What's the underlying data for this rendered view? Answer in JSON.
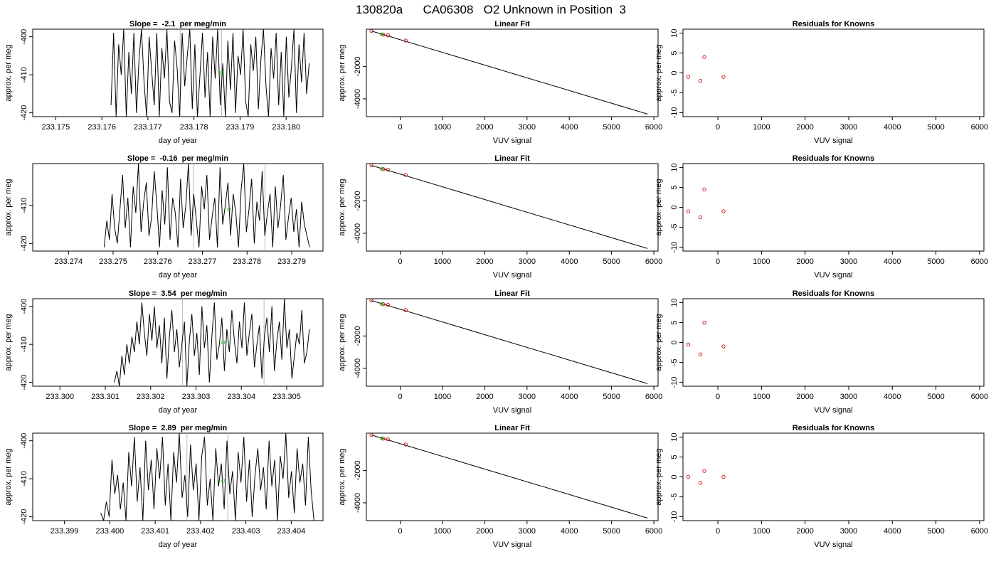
{
  "page_title": "130820a      CA06308   O2 Unknown in Position  3",
  "chart_data": [
    {
      "type": "line",
      "title": "Slope =  -2.1  per meg/min",
      "xlabel": "day of year",
      "ylabel": "approx. per meg",
      "xlim": [
        233.1745,
        233.1808
      ],
      "ylim": [
        -421,
        -398
      ],
      "xticks": [
        "233.175",
        "233.176",
        "233.177",
        "233.178",
        "233.179",
        "233.180"
      ],
      "yticks": [
        "-400",
        "-410",
        "-420"
      ],
      "x_start": 233.1762,
      "x_end": 233.1805,
      "series": [
        {
          "values": [
            -418,
            -399,
            -421,
            -402,
            -410,
            -398,
            -421,
            -404,
            -415,
            -399,
            -420,
            -406,
            -398,
            -412,
            -421,
            -400,
            -409,
            -418,
            -399,
            -421,
            -403,
            -411,
            -398,
            -417,
            -420,
            -401,
            -408,
            -421,
            -399,
            -413,
            -405,
            -398,
            -419,
            -402,
            -421,
            -410,
            -399,
            -416,
            -404,
            -421,
            -400,
            -411,
            -398,
            -418,
            -407,
            -421,
            -401,
            -414,
            -399,
            -420,
            -405,
            -410,
            -398,
            -417,
            -421,
            -402,
            -409,
            -400,
            -419,
            -406,
            -398,
            -413,
            -421,
            -403,
            -411,
            -399,
            -418,
            -404,
            -421,
            -400,
            -416,
            -408,
            -398,
            -420,
            -402,
            -412,
            -399,
            -415,
            -407
          ]
        }
      ],
      "vlines": [
        233.1777,
        233.1786
      ],
      "green_point": [
        233.1786,
        -409.5
      ]
    },
    {
      "type": "line",
      "title": "Linear Fit",
      "xlabel": "VUV signal",
      "ylabel": "approx. per meg",
      "xlim": [
        -800,
        6100
      ],
      "ylim": [
        -5100,
        300
      ],
      "xticks": [
        "0",
        "1000",
        "2000",
        "3000",
        "4000",
        "5000",
        "6000"
      ],
      "yticks": [
        "-2000",
        "-4000"
      ],
      "line": {
        "x": [
          -680,
          5850
        ],
        "y": [
          185,
          -4940
        ]
      },
      "knowns": {
        "x": [
          -680,
          -400,
          -290,
          130
        ],
        "y": [
          185,
          -40,
          -75,
          -400
        ]
      },
      "unknown": {
        "x": [
          -440
        ],
        "y": [
          -20
        ]
      }
    },
    {
      "type": "scatter",
      "title": "Residuals for Knowns",
      "xlabel": "VUV signal",
      "ylabel": "approx. per meg",
      "xlim": [
        -800,
        6100
      ],
      "ylim": [
        -11,
        11
      ],
      "xticks": [
        "0",
        "1000",
        "2000",
        "3000",
        "4000",
        "5000",
        "6000"
      ],
      "yticks": [
        "10",
        "5",
        "0",
        "-5",
        "-10"
      ],
      "x": [
        -680,
        -400,
        -310,
        130
      ],
      "y": [
        -1,
        -2,
        4,
        -1
      ]
    },
    {
      "type": "line",
      "title": "Slope =  -0.16  per meg/min",
      "xlabel": "day of year",
      "ylabel": "approx. per meg",
      "xlim": [
        233.2732,
        233.2797
      ],
      "ylim": [
        -422,
        -399
      ],
      "xticks": [
        "233.274",
        "233.275",
        "233.276",
        "233.277",
        "233.278",
        "233.279"
      ],
      "yticks": [
        "-410",
        "-420"
      ],
      "x_start": 233.2748,
      "x_end": 233.2794,
      "series": [
        {
          "values": [
            -421,
            -414,
            -419,
            -407,
            -416,
            -420,
            -411,
            -402,
            -416,
            -408,
            -421,
            -405,
            -412,
            -399,
            -417,
            -409,
            -404,
            -418,
            -413,
            -401,
            -410,
            -421,
            -406,
            -415,
            -400,
            -419,
            -408,
            -412,
            -421,
            -403,
            -416,
            -410,
            -399,
            -418,
            -407,
            -414,
            -421,
            -405,
            -411,
            -402,
            -419,
            -413,
            -408,
            -421,
            -400,
            -415,
            -410,
            -404,
            -418,
            -407,
            -412,
            -421,
            -406,
            -399,
            -417,
            -411,
            -403,
            -420,
            -409,
            -414,
            -401,
            -418,
            -412,
            -407,
            -421,
            -405,
            -416,
            -410,
            -402,
            -419,
            -413,
            -408,
            -417,
            -411,
            -421,
            -409,
            -415,
            -418,
            -421
          ]
        }
      ],
      "vlines": [
        233.2768,
        233.2784
      ],
      "green_point": [
        233.2776,
        -411
      ]
    },
    {
      "type": "line",
      "title": "Linear Fit",
      "xlabel": "VUV signal",
      "ylabel": "approx. per meg",
      "xlim": [
        -800,
        6100
      ],
      "ylim": [
        -5100,
        300
      ],
      "xticks": [
        "0",
        "1000",
        "2000",
        "3000",
        "4000",
        "5000",
        "6000"
      ],
      "yticks": [
        "-2000",
        "-4000"
      ],
      "line": {
        "x": [
          -680,
          5850
        ],
        "y": [
          185,
          -4940
        ]
      },
      "knowns": {
        "x": [
          -680,
          -400,
          -290,
          130
        ],
        "y": [
          185,
          -40,
          -75,
          -400
        ]
      },
      "unknown": {
        "x": [
          -440
        ],
        "y": [
          -20
        ]
      }
    },
    {
      "type": "scatter",
      "title": "Residuals for Knowns",
      "xlabel": "VUV signal",
      "ylabel": "approx. per meg",
      "xlim": [
        -800,
        6100
      ],
      "ylim": [
        -11,
        11
      ],
      "xticks": [
        "0",
        "1000",
        "2000",
        "3000",
        "4000",
        "5000",
        "6000"
      ],
      "yticks": [
        "10",
        "5",
        "0",
        "-5",
        "-10"
      ],
      "x": [
        -680,
        -400,
        -310,
        130
      ],
      "y": [
        -1,
        -2.5,
        4.5,
        -1
      ]
    },
    {
      "type": "line",
      "title": "Slope =  3.54  per meg/min",
      "xlabel": "day of year",
      "ylabel": "approx. per meg",
      "xlim": [
        233.2994,
        233.3058
      ],
      "ylim": [
        -421,
        -398
      ],
      "xticks": [
        "233.300",
        "233.301",
        "233.302",
        "233.303",
        "233.304",
        "233.305"
      ],
      "yticks": [
        "-400",
        "-410",
        "-420"
      ],
      "x_start": 233.3012,
      "x_end": 233.3055,
      "series": [
        {
          "values": [
            -420,
            -417,
            -421,
            -413,
            -418,
            -410,
            -415,
            -408,
            -412,
            -404,
            -410,
            -399,
            -407,
            -413,
            -402,
            -409,
            -400,
            -411,
            -405,
            -415,
            -403,
            -419,
            -408,
            -401,
            -412,
            -406,
            -416,
            -410,
            -404,
            -421,
            -409,
            -402,
            -413,
            -407,
            -418,
            -400,
            -411,
            -405,
            -420,
            -408,
            -399,
            -414,
            -410,
            -403,
            -417,
            -406,
            -412,
            -401,
            -409,
            -415,
            -404,
            -411,
            -399,
            -413,
            -407,
            -402,
            -416,
            -410,
            -405,
            -419,
            -408,
            -403,
            -412,
            -400,
            -417,
            -409,
            -404,
            -414,
            -398,
            -411,
            -406,
            -419,
            -413,
            -407,
            -410,
            -401,
            -415,
            -412,
            -406
          ]
        }
      ],
      "vlines": [
        233.3027,
        233.3045
      ],
      "green_point": [
        233.3036,
        -409.5
      ]
    },
    {
      "type": "line",
      "title": "Linear Fit",
      "xlabel": "VUV signal",
      "ylabel": "approx. per meg",
      "xlim": [
        -800,
        6100
      ],
      "ylim": [
        -5100,
        300
      ],
      "xticks": [
        "0",
        "1000",
        "2000",
        "3000",
        "4000",
        "5000",
        "6000"
      ],
      "yticks": [
        "-2000",
        "-4000"
      ],
      "line": {
        "x": [
          -680,
          5850
        ],
        "y": [
          185,
          -4940
        ]
      },
      "knowns": {
        "x": [
          -680,
          -400,
          -290,
          130
        ],
        "y": [
          185,
          -40,
          -75,
          -400
        ]
      },
      "unknown": {
        "x": [
          -440
        ],
        "y": [
          -20
        ]
      }
    },
    {
      "type": "scatter",
      "title": "Residuals for Knowns",
      "xlabel": "VUV signal",
      "ylabel": "approx. per meg",
      "xlim": [
        -800,
        6100
      ],
      "ylim": [
        -11,
        11
      ],
      "xticks": [
        "0",
        "1000",
        "2000",
        "3000",
        "4000",
        "5000",
        "6000"
      ],
      "yticks": [
        "10",
        "5",
        "0",
        "-5",
        "-10"
      ],
      "x": [
        -680,
        -400,
        -310,
        130
      ],
      "y": [
        -0.5,
        -3,
        5,
        -1
      ]
    },
    {
      "type": "line",
      "title": "Slope =  2.89  per meg/min",
      "xlabel": "day of year",
      "ylabel": "approx. per meg",
      "xlim": [
        233.3983,
        233.4047
      ],
      "ylim": [
        -421,
        -398
      ],
      "xticks": [
        "233.399",
        "233.400",
        "233.401",
        "233.402",
        "233.403",
        "233.404"
      ],
      "yticks": [
        "-400",
        "-410",
        "-420"
      ],
      "x_start": 233.3998,
      "x_end": 233.4045,
      "series": [
        {
          "values": [
            -419,
            -421,
            -416,
            -420,
            -405,
            -414,
            -409,
            -418,
            -411,
            -421,
            -403,
            -412,
            -399,
            -416,
            -407,
            -421,
            -400,
            -413,
            -405,
            -418,
            -402,
            -410,
            -399,
            -417,
            -406,
            -421,
            -403,
            -411,
            -398,
            -415,
            -409,
            -420,
            -401,
            -413,
            -406,
            -421,
            -404,
            -399,
            -417,
            -410,
            -421,
            -402,
            -412,
            -406,
            -418,
            -400,
            -414,
            -408,
            -421,
            -403,
            -411,
            -399,
            -416,
            -405,
            -420,
            -409,
            -402,
            -413,
            -407,
            -418,
            -400,
            -412,
            -405,
            -421,
            -404,
            -410,
            -398,
            -415,
            -408,
            -419,
            -402,
            -411,
            -406,
            -417,
            -399,
            -413,
            -421
          ]
        }
      ],
      "vlines": [
        233.4017,
        233.4026
      ],
      "green_point": [
        233.4025,
        -410.5
      ]
    },
    {
      "type": "line",
      "title": "Linear Fit",
      "xlabel": "VUV signal",
      "ylabel": "approx. per meg",
      "xlim": [
        -800,
        6100
      ],
      "ylim": [
        -5100,
        300
      ],
      "xticks": [
        "0",
        "1000",
        "2000",
        "3000",
        "4000",
        "5000",
        "6000"
      ],
      "yticks": [
        "-2000",
        "-4000"
      ],
      "line": {
        "x": [
          -680,
          5850
        ],
        "y": [
          185,
          -4940
        ]
      },
      "knowns": {
        "x": [
          -680,
          -400,
          -290,
          130
        ],
        "y": [
          185,
          -40,
          -75,
          -400
        ]
      },
      "unknown": {
        "x": [
          -440
        ],
        "y": [
          -20
        ]
      }
    },
    {
      "type": "scatter",
      "title": "Residuals for Knowns",
      "xlabel": "VUV signal",
      "ylabel": "approx. per meg",
      "xlim": [
        -800,
        6100
      ],
      "ylim": [
        -11,
        11
      ],
      "xticks": [
        "0",
        "1000",
        "2000",
        "3000",
        "4000",
        "5000",
        "6000"
      ],
      "yticks": [
        "10",
        "5",
        "0",
        "-5",
        "-10"
      ],
      "x": [
        -680,
        -400,
        -310,
        130
      ],
      "y": [
        0,
        -1.5,
        1.5,
        0
      ]
    }
  ]
}
